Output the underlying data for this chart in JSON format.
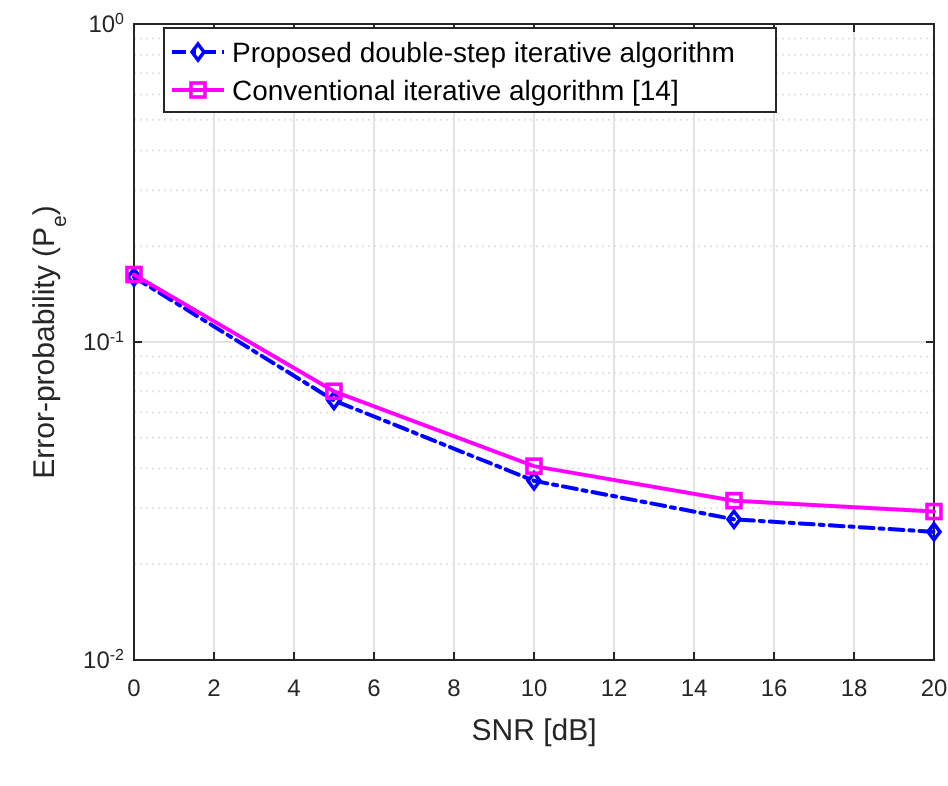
{
  "chart_data": {
    "type": "line",
    "xlabel": "SNR [dB]",
    "ylabel": "Error-probability (P$_{e}$)",
    "log": "y",
    "grid": true,
    "legend": "top left",
    "x": [
      0,
      5,
      10,
      15,
      20
    ],
    "xlim": [
      0,
      20
    ],
    "xticks": [
      0,
      2,
      4,
      6,
      8,
      10,
      12,
      14,
      16,
      18,
      20
    ],
    "ylim": [
      0.01,
      1
    ],
    "yticks": [
      {
        "value": 0.01,
        "label": "10$^{-2}$"
      },
      {
        "value": 0.1,
        "label": "10$^{-1}$"
      },
      {
        "value": 1,
        "label": "10$^{0}$"
      }
    ],
    "series": [
      {
        "name": "Proposed double-step iterative algorithm",
        "color": "#0000ff",
        "marker": "diamond",
        "line_style": "dashdot",
        "values": [
          0.16,
          0.0655,
          0.0366,
          0.0277,
          0.0253
        ]
      },
      {
        "name": "Conventional iterative algorithm [14]",
        "color": "#ff00ff",
        "marker": "square",
        "line_style": "solid",
        "values": [
          0.163,
          0.07,
          0.0407,
          0.0317,
          0.0293
        ]
      }
    ]
  }
}
